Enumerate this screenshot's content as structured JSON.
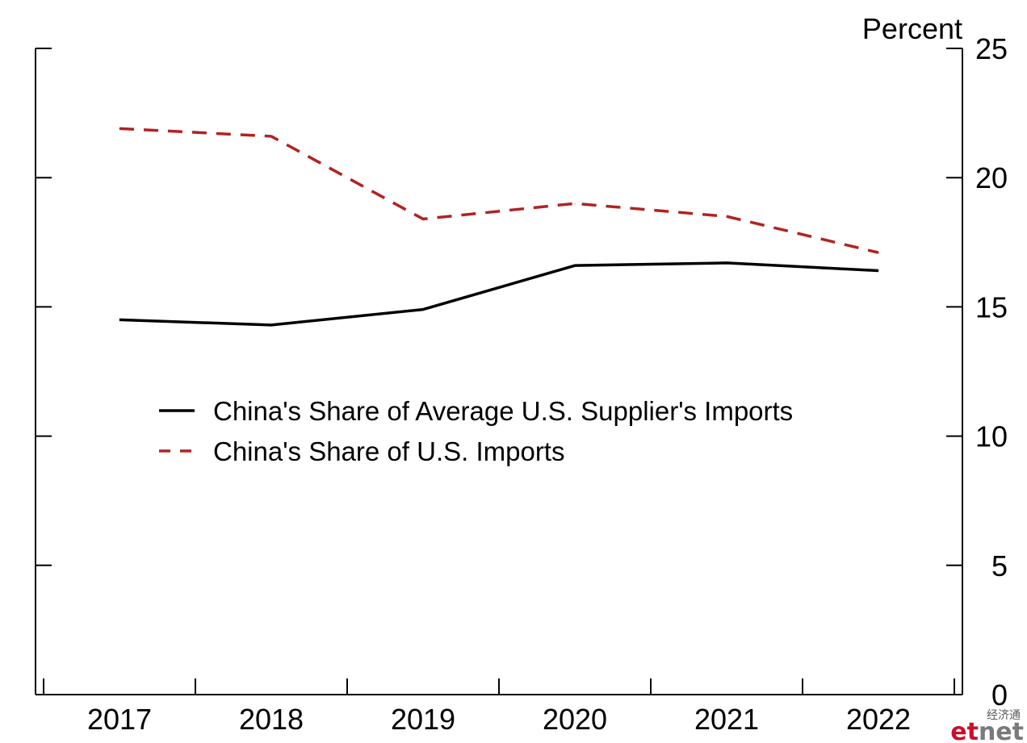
{
  "chart_data": {
    "type": "line",
    "x": [
      "2017",
      "2018",
      "2019",
      "2020",
      "2021",
      "2022"
    ],
    "series": [
      {
        "name": "China's Share of Average U.S. Supplier's Imports",
        "values": [
          14.5,
          14.3,
          14.9,
          16.6,
          16.7,
          16.4
        ],
        "color": "#000000",
        "style": "solid"
      },
      {
        "name": "China's Share of U.S. Imports",
        "values": [
          21.9,
          21.6,
          18.4,
          19.0,
          18.5,
          17.1
        ],
        "color": "#b22222",
        "style": "dashed"
      }
    ],
    "y_unit_label": "Percent",
    "ylim": [
      0,
      25
    ],
    "yticks": [
      "0",
      "5",
      "10",
      "15",
      "20",
      "25"
    ],
    "y_axis_side": "right",
    "grid": false,
    "legend_placement": "center-left"
  },
  "watermark": {
    "chinese": "经济通",
    "brand_et": "et",
    "brand_net": "net",
    "colors": {
      "et": "#c8102e",
      "net": "#7a7a7a"
    }
  }
}
